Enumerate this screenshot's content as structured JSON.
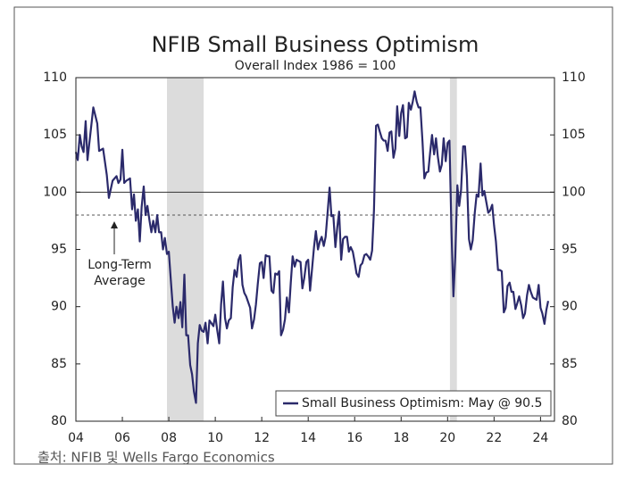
{
  "chart_data": {
    "type": "line",
    "title": "NFIB Small Business Optimism",
    "subtitle": "Overall Index 1986 = 100",
    "source": "출처: NFIB 및 Wells Fargo Economics",
    "legend_label": "Small Business Optimism: May @ 90.5",
    "legend_position": "lower right",
    "annotation": [
      "Long-Term",
      "Average"
    ],
    "xlim": [
      2004,
      2024.6
    ],
    "xticks": [
      {
        "value": 2004,
        "label": "04"
      },
      {
        "value": 2006,
        "label": "06"
      },
      {
        "value": 2008,
        "label": "08"
      },
      {
        "value": 2010,
        "label": "10"
      },
      {
        "value": 2012,
        "label": "12"
      },
      {
        "value": 2014,
        "label": "14"
      },
      {
        "value": 2016,
        "label": "16"
      },
      {
        "value": 2018,
        "label": "18"
      },
      {
        "value": 2020,
        "label": "20"
      },
      {
        "value": 2022,
        "label": "22"
      },
      {
        "value": 2024,
        "label": "24"
      }
    ],
    "ylim": [
      80,
      110
    ],
    "yticks": [
      80,
      85,
      90,
      95,
      100,
      105,
      110
    ],
    "hlines": [
      {
        "value": 100,
        "style": "solid",
        "color": "#333333"
      },
      {
        "value": 98,
        "style": "dashed",
        "color": "#555555"
      }
    ],
    "shaded": [
      [
        2007.92,
        2009.5
      ],
      [
        2020.1,
        2020.4
      ]
    ],
    "shade_color": "#dcdcdc",
    "series": [
      {
        "name": "Small Business Optimism",
        "color": "#2b2a6b",
        "x": [
          2004.0,
          2004.08,
          2004.17,
          2004.25,
          2004.33,
          2004.42,
          2004.5,
          2004.58,
          2004.75,
          2004.92,
          2005.0,
          2005.17,
          2005.33,
          2005.42,
          2005.58,
          2005.75,
          2005.83,
          2005.92,
          2006.0,
          2006.08,
          2006.17,
          2006.33,
          2006.42,
          2006.5,
          2006.58,
          2006.67,
          2006.75,
          2006.83,
          2006.92,
          2007.0,
          2007.08,
          2007.17,
          2007.25,
          2007.33,
          2007.42,
          2007.5,
          2007.58,
          2007.67,
          2007.75,
          2007.83,
          2007.92,
          2008.0,
          2008.08,
          2008.17,
          2008.25,
          2008.33,
          2008.42,
          2008.5,
          2008.58,
          2008.67,
          2008.75,
          2008.83,
          2008.92,
          2009.0,
          2009.08,
          2009.17,
          2009.25,
          2009.33,
          2009.42,
          2009.5,
          2009.58,
          2009.67,
          2009.75,
          2009.92,
          2010.0,
          2010.08,
          2010.17,
          2010.25,
          2010.33,
          2010.42,
          2010.5,
          2010.58,
          2010.67,
          2010.75,
          2010.83,
          2010.92,
          2011.0,
          2011.08,
          2011.17,
          2011.25,
          2011.33,
          2011.5,
          2011.58,
          2011.67,
          2011.75,
          2011.83,
          2011.92,
          2012.0,
          2012.08,
          2012.17,
          2012.25,
          2012.33,
          2012.42,
          2012.5,
          2012.58,
          2012.67,
          2012.75,
          2012.83,
          2012.92,
          2013.0,
          2013.08,
          2013.17,
          2013.25,
          2013.33,
          2013.42,
          2013.5,
          2013.58,
          2013.67,
          2013.75,
          2013.83,
          2013.92,
          2014.0,
          2014.08,
          2014.17,
          2014.25,
          2014.33,
          2014.42,
          2014.5,
          2014.58,
          2014.67,
          2014.75,
          2014.83,
          2014.92,
          2015.0,
          2015.08,
          2015.17,
          2015.25,
          2015.33,
          2015.42,
          2015.5,
          2015.58,
          2015.67,
          2015.75,
          2015.83,
          2015.92,
          2016.0,
          2016.08,
          2016.17,
          2016.25,
          2016.33,
          2016.42,
          2016.5,
          2016.58,
          2016.67,
          2016.75,
          2016.83,
          2016.92,
          2017.0,
          2017.08,
          2017.17,
          2017.25,
          2017.33,
          2017.42,
          2017.5,
          2017.58,
          2017.67,
          2017.75,
          2017.83,
          2017.92,
          2018.0,
          2018.08,
          2018.17,
          2018.25,
          2018.33,
          2018.42,
          2018.5,
          2018.58,
          2018.67,
          2018.75,
          2018.83,
          2018.92,
          2019.0,
          2019.08,
          2019.17,
          2019.25,
          2019.33,
          2019.42,
          2019.5,
          2019.58,
          2019.67,
          2019.75,
          2019.83,
          2019.92,
          2020.0,
          2020.08,
          2020.17,
          2020.25,
          2020.33,
          2020.42,
          2020.5,
          2020.58,
          2020.67,
          2020.75,
          2020.83,
          2020.92,
          2021.0,
          2021.08,
          2021.17,
          2021.25,
          2021.33,
          2021.42,
          2021.5,
          2021.58,
          2021.67,
          2021.75,
          2021.83,
          2021.92,
          2022.0,
          2022.08,
          2022.17,
          2022.25,
          2022.33,
          2022.42,
          2022.5,
          2022.58,
          2022.67,
          2022.75,
          2022.83,
          2022.92,
          2023.0,
          2023.08,
          2023.17,
          2023.25,
          2023.33,
          2023.42,
          2023.5,
          2023.58,
          2023.67,
          2023.75,
          2023.83,
          2023.92,
          2024.0,
          2024.08,
          2024.17,
          2024.25,
          2024.33
        ],
        "values": [
          103.5,
          102.8,
          105.0,
          104.0,
          103.5,
          106.2,
          102.8,
          104.3,
          107.4,
          106.0,
          103.6,
          103.8,
          101.5,
          99.5,
          101.0,
          101.4,
          100.8,
          101.1,
          103.7,
          100.8,
          101.0,
          101.2,
          98.5,
          99.8,
          97.5,
          98.5,
          95.7,
          98.7,
          100.5,
          98.0,
          98.8,
          97.5,
          96.5,
          97.5,
          96.5,
          98.0,
          96.5,
          96.5,
          95.0,
          96.0,
          94.6,
          94.8,
          92.5,
          90.0,
          88.6,
          90.0,
          89.0,
          90.4,
          88.2,
          92.8,
          87.5,
          87.5,
          84.9,
          84.1,
          82.6,
          81.6,
          86.8,
          88.4,
          87.9,
          87.8,
          88.6,
          86.8,
          88.8,
          88.3,
          89.3,
          88.0,
          86.8,
          90.2,
          92.2,
          89.0,
          88.1,
          88.8,
          89.0,
          91.7,
          93.2,
          92.6,
          94.1,
          94.5,
          91.9,
          91.2,
          90.9,
          89.9,
          88.1,
          88.9,
          90.2,
          92.0,
          93.8,
          93.9,
          92.5,
          94.5,
          94.4,
          94.4,
          91.4,
          91.2,
          92.9,
          92.8,
          93.1,
          87.5,
          88.0,
          88.9,
          90.8,
          89.5,
          92.1,
          94.4,
          93.5,
          94.1,
          94.0,
          93.9,
          91.6,
          92.5,
          93.9,
          94.1,
          91.4,
          93.4,
          95.2,
          96.6,
          95.0,
          95.7,
          96.1,
          95.3,
          96.1,
          98.1,
          100.4,
          97.9,
          98.0,
          95.2,
          96.9,
          98.3,
          94.1,
          95.9,
          96.1,
          96.1,
          94.8,
          95.2,
          94.8,
          93.9,
          92.9,
          92.6,
          93.6,
          93.8,
          94.5,
          94.6,
          94.4,
          94.1,
          94.9,
          98.4,
          105.8,
          105.9,
          105.3,
          104.7,
          104.5,
          104.5,
          103.6,
          105.2,
          105.3,
          103.0,
          103.8,
          107.5,
          104.9,
          106.9,
          107.6,
          104.7,
          104.8,
          107.8,
          107.2,
          107.9,
          108.8,
          107.9,
          107.4,
          107.4,
          104.4,
          101.2,
          101.7,
          101.8,
          103.5,
          105.0,
          103.3,
          104.7,
          103.1,
          101.8,
          102.4,
          104.7,
          102.7,
          104.3,
          104.5,
          96.4,
          90.9,
          94.4,
          100.6,
          98.8,
          100.2,
          104.0,
          104.0,
          101.4,
          95.9,
          95.0,
          95.8,
          98.2,
          99.8,
          99.6,
          102.5,
          99.7,
          100.1,
          99.1,
          98.2,
          98.4,
          98.9,
          97.1,
          95.7,
          93.2,
          93.2,
          93.1,
          89.5,
          89.9,
          91.8,
          92.1,
          91.3,
          91.3,
          89.8,
          90.3,
          90.9,
          90.1,
          89.0,
          89.4,
          91.0,
          91.9,
          91.3,
          90.8,
          90.7,
          90.6,
          91.9,
          89.9,
          89.4,
          88.5,
          89.7,
          90.5
        ]
      }
    ]
  }
}
